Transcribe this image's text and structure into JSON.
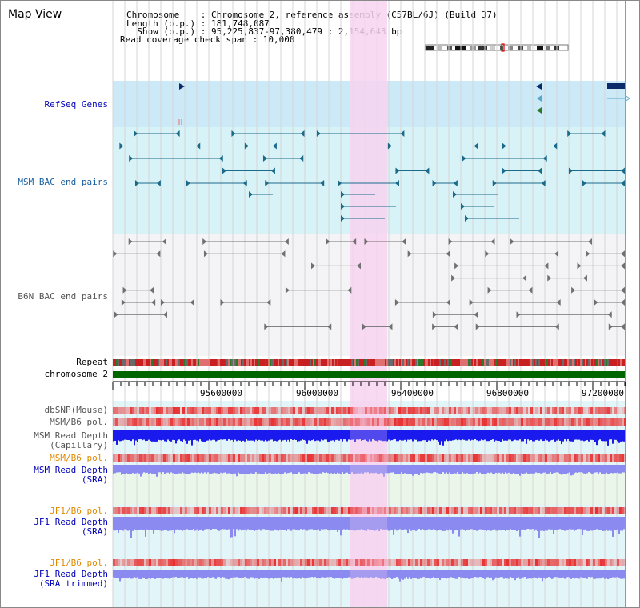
{
  "header": {
    "title": "Map View",
    "info_lines": [
      "Chromosome    : Chromosome 2, reference assembly (C57BL/6J) (Build 37)",
      "Length (b.p.) : 181,748,087",
      "  Show (b.p.) : 95,225,837-97,380,479 : 2,154,643 bp",
      "Read coverage check span : 10,000"
    ]
  },
  "axis": {
    "ticks": [
      "95600000",
      "96000000",
      "96400000",
      "96800000",
      "97200000"
    ]
  },
  "tracks": {
    "refseq": "RefSeq Genes",
    "msm_bac": "MSM BAC end pairs",
    "b6n_bac": "B6N BAC end pairs",
    "repeat": "Repeat",
    "chromosome": "chromosome 2",
    "dbsnp": "dbSNP(Mouse)",
    "msm_b6_pol": "MSM/B6 pol.",
    "msm_depth_cap": "MSM Read Depth\n(Capillary)",
    "msm_b6_pol2": "MSM/B6 pol.",
    "msm_depth_sra": "MSM Read Depth\n(SRA)",
    "jf1_b6_pol": "JF1/B6 pol.",
    "jf1_depth_sra": "JF1 Read Depth\n(SRA)",
    "jf1_b6_pol2": "JF1/B6 pol.",
    "jf1_depth_trim": "JF1 Read Depth\n(SRA trimmed)"
  },
  "colors": {
    "refseq_bg": "#cce9f7",
    "msm_bg": "#d8f3f7",
    "b6n_bg": "#f4f4f6",
    "highlight": "#f7d4f0",
    "teal_track": "#1c6a8a",
    "gray_track": "#707070",
    "chromosome_green": "#006600",
    "depth_blue": "#1a1aee",
    "depth_light_blue": "#8a8af0",
    "pol_red": "#e83030"
  }
}
